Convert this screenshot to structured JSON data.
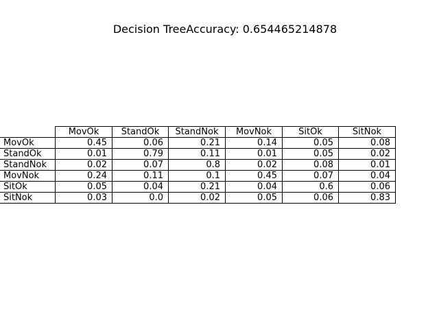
{
  "chart_data": {
    "type": "table",
    "title": "Decision TreeAccuracy: 0.654465214878",
    "columns": [
      "MovOk",
      "StandOk",
      "StandNok",
      "MovNok",
      "SitOk",
      "SitNok"
    ],
    "rows": [
      {
        "label": "MovOk",
        "values": [
          "0.45",
          "0.06",
          "0.21",
          "0.14",
          "0.05",
          "0.08"
        ]
      },
      {
        "label": "StandOk",
        "values": [
          "0.01",
          "0.79",
          "0.11",
          "0.01",
          "0.05",
          "0.02"
        ]
      },
      {
        "label": "StandNok",
        "values": [
          "0.02",
          "0.07",
          "0.8",
          "0.02",
          "0.08",
          "0.01"
        ]
      },
      {
        "label": "MovNok",
        "values": [
          "0.24",
          "0.11",
          "0.1",
          "0.45",
          "0.07",
          "0.04"
        ]
      },
      {
        "label": "SitOk",
        "values": [
          "0.05",
          "0.04",
          "0.21",
          "0.04",
          "0.6",
          "0.06"
        ]
      },
      {
        "label": "SitNok",
        "values": [
          "0.03",
          "0.0",
          "0.02",
          "0.05",
          "0.06",
          "0.83"
        ]
      }
    ]
  }
}
